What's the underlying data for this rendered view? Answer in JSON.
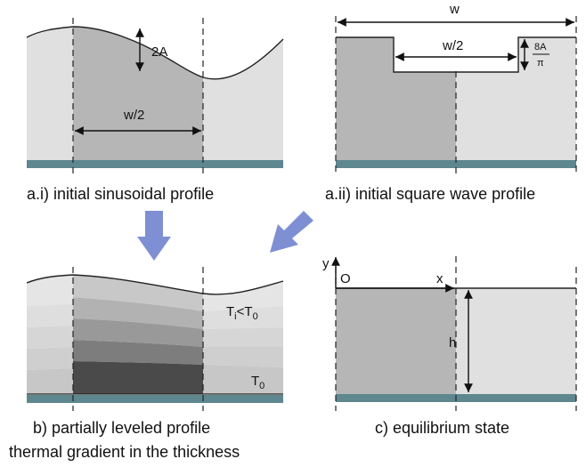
{
  "panels": {
    "a1": {
      "caption": "a.i) initial sinusoidal profile",
      "amplitude_label": "2A",
      "half_width_label": "w/2"
    },
    "a2": {
      "caption": "a.ii) initial square wave profile",
      "width_label": "w",
      "half_width_label": "w/2",
      "height_numerator": "8A",
      "height_denominator": "π"
    },
    "b": {
      "caption_line1": "b) partially leveled profile",
      "caption_line2": "thermal gradient in the thickness",
      "temp_top_main": "T",
      "temp_top_sub1": "i",
      "temp_top_rel": "<T",
      "temp_top_sub2": "0",
      "temp_bottom_main": "T",
      "temp_bottom_sub": "0"
    },
    "c": {
      "caption": "c) equilibrium state",
      "y_label": "y",
      "origin_label": "O",
      "x_label": "x",
      "height_label": "h"
    }
  },
  "colors": {
    "substrate": "#5f8790",
    "light_fill": "#e0e0e0",
    "mid_fill": "#b5b5b5",
    "dark_fill": "#4a4a4a",
    "arrow": "#7f8fd3",
    "ink": "#111111"
  }
}
